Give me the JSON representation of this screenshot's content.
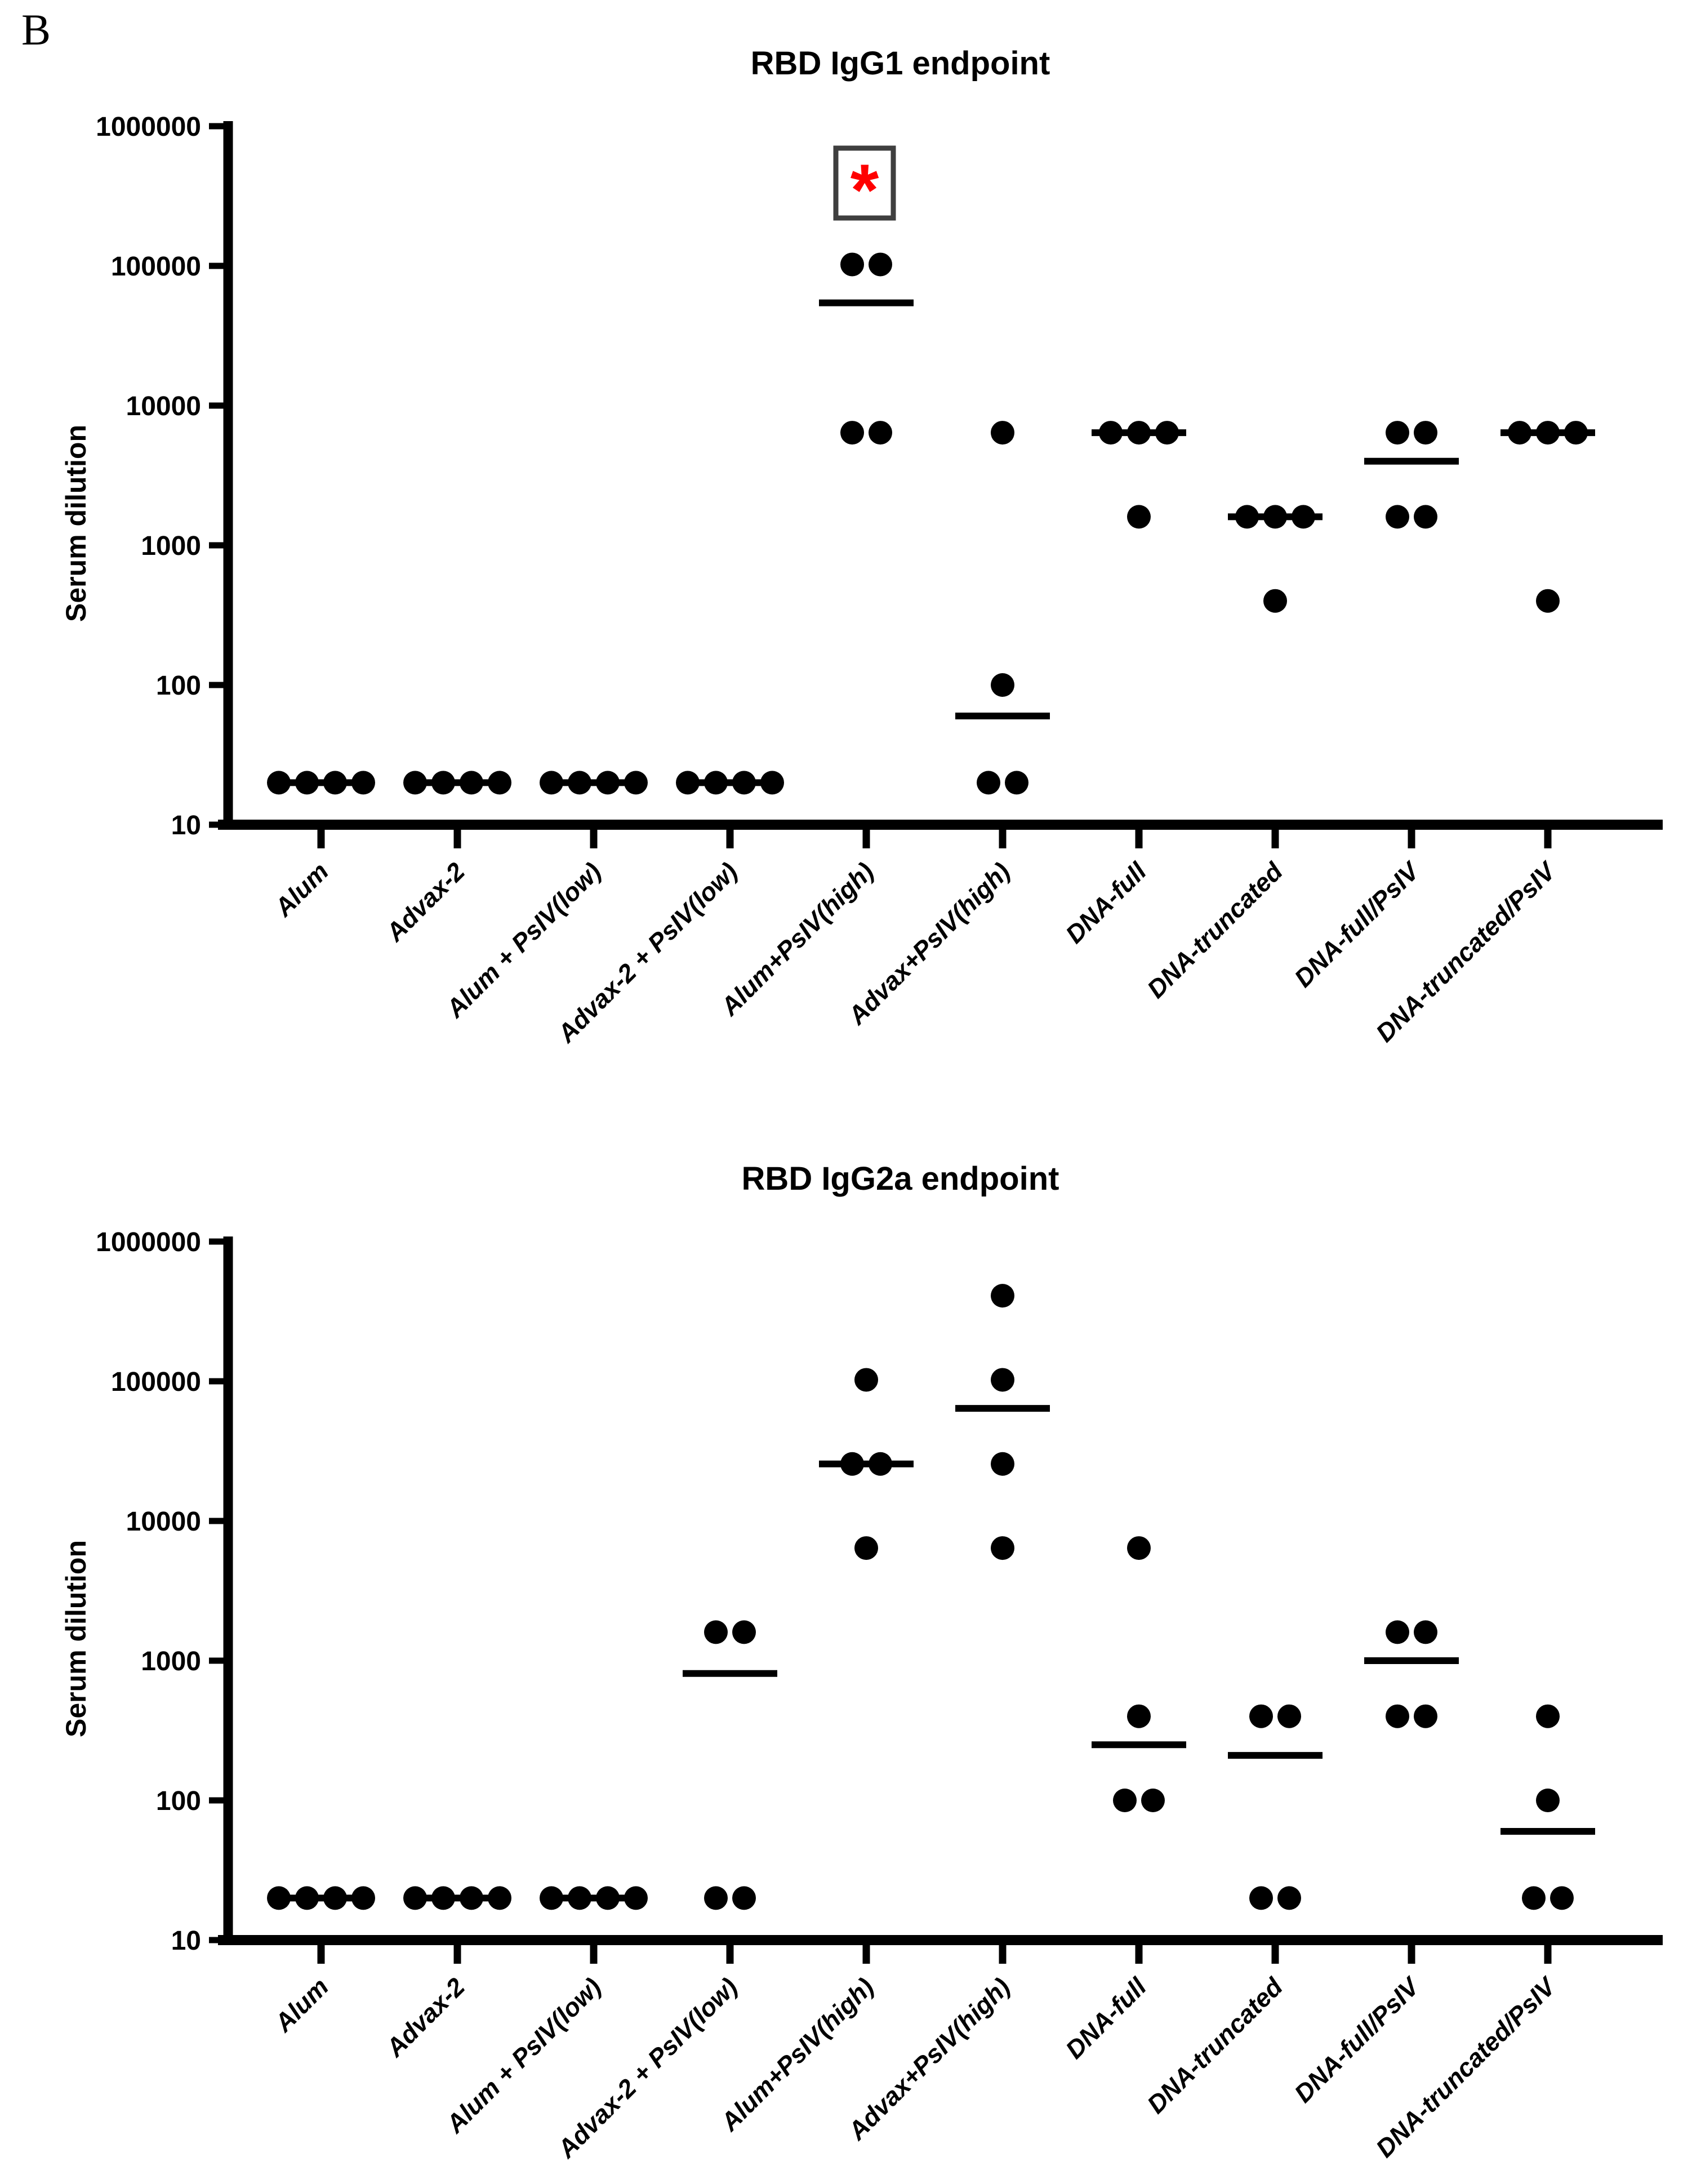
{
  "panel_label": "B",
  "colors": {
    "foreground": "#000000",
    "dot": "#000000",
    "median_line": "#000000",
    "asterisk": "#ff0000",
    "significance_box_border": "#3f3f3f",
    "background": "#ffffff"
  },
  "chart_data": [
    {
      "type": "scatter",
      "title": "RBD IgG1 endpoint",
      "ylabel": "Serum dilution",
      "xlabel": "",
      "yscale": "log",
      "ylim": [
        10,
        1000000
      ],
      "y_ticks": [
        1000000,
        100000,
        10000,
        1000,
        100,
        10
      ],
      "legend": "none",
      "grid": "off",
      "categories": [
        "Alum",
        "Advax-2",
        "Alum + PsIV(low)",
        "Advax-2 + PsIV(low)",
        "Alum+PsIV(high)",
        "Advax+PsIV(high)",
        "DNA-full",
        "DNA-truncated",
        "DNA-full/PsIV",
        "DNA-truncated/PsIV"
      ],
      "groups": [
        {
          "label": "Alum",
          "values": [
            20,
            20,
            20,
            20
          ],
          "median": 20
        },
        {
          "label": "Advax-2",
          "values": [
            20,
            20,
            20,
            20
          ],
          "median": 20
        },
        {
          "label": "Alum + PsIV(low)",
          "values": [
            20,
            20,
            20,
            20
          ],
          "median": 20
        },
        {
          "label": "Advax-2 + PsIV(low)",
          "values": [
            20,
            20,
            20,
            20
          ],
          "median": 20
        },
        {
          "label": "Alum+PsIV(high)",
          "values": [
            102400,
            102400,
            6400,
            6400
          ],
          "median": 54400
        },
        {
          "label": "Advax+PsIV(high)",
          "values": [
            6400,
            100,
            20,
            20
          ],
          "median": 60
        },
        {
          "label": "DNA-full",
          "values": [
            6400,
            6400,
            6400,
            1600
          ],
          "median": 6400
        },
        {
          "label": "DNA-truncated",
          "values": [
            1600,
            1600,
            1600,
            400
          ],
          "median": 1600
        },
        {
          "label": "DNA-full/PsIV",
          "values": [
            6400,
            6400,
            1600,
            1600
          ],
          "median": 4000
        },
        {
          "label": "DNA-truncated/PsIV",
          "values": [
            6400,
            6400,
            6400,
            400
          ],
          "median": 6400
        }
      ],
      "annotation": {
        "symbol": "*",
        "group_index": 4,
        "style": "boxed-red-asterisk"
      }
    },
    {
      "type": "scatter",
      "title": "RBD IgG2a endpoint",
      "ylabel": "Serum dilution",
      "xlabel": "",
      "yscale": "log",
      "ylim": [
        10,
        1000000
      ],
      "y_ticks": [
        1000000,
        100000,
        10000,
        1000,
        100,
        10
      ],
      "legend": "none",
      "grid": "off",
      "categories": [
        "Alum",
        "Advax-2",
        "Alum + PsIV(low)",
        "Advax-2 + PsIV(low)",
        "Alum+PsIV(high)",
        "Advax+PsIV(high)",
        "DNA-full",
        "DNA-truncated",
        "DNA-full/PsIV",
        "DNA-truncated/PsIV"
      ],
      "groups": [
        {
          "label": "Alum",
          "values": [
            20,
            20,
            20,
            20
          ],
          "median": 20
        },
        {
          "label": "Advax-2",
          "values": [
            20,
            20,
            20,
            20
          ],
          "median": 20
        },
        {
          "label": "Alum + PsIV(low)",
          "values": [
            20,
            20,
            20,
            20
          ],
          "median": 20
        },
        {
          "label": "Advax-2 + PsIV(low)",
          "values": [
            1600,
            1600,
            20,
            20
          ],
          "median": 810
        },
        {
          "label": "Alum+PsIV(high)",
          "values": [
            102400,
            25600,
            25600,
            6400
          ],
          "median": 25600
        },
        {
          "label": "Advax+PsIV(high)",
          "values": [
            409600,
            102400,
            25600,
            6400
          ],
          "median": 64000
        },
        {
          "label": "DNA-full",
          "values": [
            6400,
            400,
            100,
            100
          ],
          "median": 250
        },
        {
          "label": "DNA-truncated",
          "values": [
            400,
            400,
            20,
            20
          ],
          "median": 210
        },
        {
          "label": "DNA-full/PsIV",
          "values": [
            1600,
            1600,
            400,
            400
          ],
          "median": 1000
        },
        {
          "label": "DNA-truncated/PsIV",
          "values": [
            400,
            100,
            20,
            20
          ],
          "median": 60
        }
      ],
      "annotation": null
    }
  ]
}
